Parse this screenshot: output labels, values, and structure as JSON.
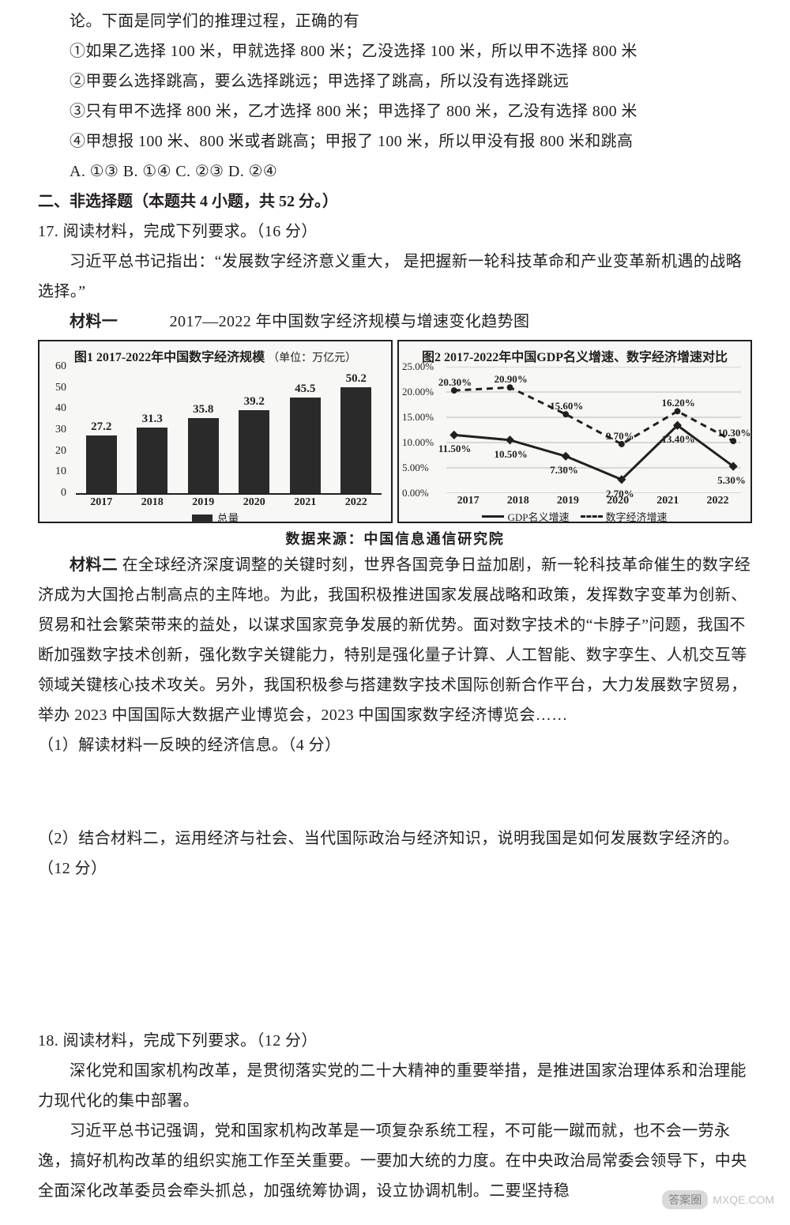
{
  "q_continued": {
    "stem_cont": "论。下面是同学们的推理过程，正确的有",
    "opt1": "①如果乙选择 100 米，甲就选择 800 米；乙没选择 100 米，所以甲不选择 800 米",
    "opt2": "②甲要么选择跳高，要么选择跳远；甲选择了跳高，所以没有选择跳远",
    "opt3": "③只有甲不选择 800 米，乙才选择 800 米；甲选择了 800 米，乙没有选择 800 米",
    "opt4": "④甲想报 100 米、800 米或者跳高；甲报了 100 米，所以甲没有报 800 米和跳高",
    "choices": "A. ①③ B. ①④ C. ②③ D. ②④"
  },
  "section2_heading": "二、非选择题（本题共 4 小题，共 52 分。）",
  "q17": {
    "heading": "17. 阅读材料，完成下列要求。（16 分）",
    "lead": "习近平总书记指出：“发展数字经济意义重大， 是把握新一轮科技革命和产业变革新机遇的战略选择。”",
    "mat1_label": "材料一",
    "mat1_title": "2017—2022 年中国数字经济规模与增速变化趋势图",
    "mat2_label": "材料二",
    "mat2_body": "在全球经济深度调整的关键时刻，世界各国竞争日益加剧，新一轮科技革命催生的数字经济成为大国抢占制高点的主阵地。为此，我国积极推进国家发展战略和政策，发挥数字变革为创新、贸易和社会繁荣带来的益处，以谋求国家竞争发展的新优势。面对数字技术的“卡脖子”问题，我国不断加强数字技术创新，强化数字关键能力，特别是强化量子计算、人工智能、数字孪生、人机交互等领域关键核心技术攻关。另外，我国积极参与搭建数字技术国际创新合作平台，大力发展数字贸易，举办 2023 中国国际大数据产业博览会，2023 中国国家数字经济博览会……",
    "sub1": "（1）解读材料一反映的经济信息。（4 分）",
    "sub2": "（2）结合材料二，运用经济与社会、当代国际政治与经济知识，说明我国是如何发展数字经济的。（12 分）"
  },
  "charts": {
    "source_line": "数据来源：中国信息通信研究院",
    "bar": {
      "title": "图1  2017-2022年中国数字经济规模",
      "unit": "（单位：万亿元）",
      "type": "bar",
      "categories": [
        "2017",
        "2018",
        "2019",
        "2020",
        "2021",
        "2022"
      ],
      "values": [
        27.2,
        31.3,
        35.8,
        39.2,
        45.5,
        50.2
      ],
      "ylim": [
        0,
        60
      ],
      "ytick_step": 10,
      "bar_color": "#2a2a2a",
      "background_color": "#f7f7f5",
      "border_color": "#231f20",
      "label_fontsize": 15,
      "legend_label": "总量"
    },
    "lines": {
      "title": "图2  2017-2022年中国GDP名义增速、数字经济增速对比",
      "type": "line",
      "categories": [
        "2017",
        "2018",
        "2019",
        "2020",
        "2021",
        "2022"
      ],
      "series": [
        {
          "name": "GDP名义增速",
          "style": "solid",
          "color": "#231f20",
          "values_pct": [
            11.5,
            10.5,
            7.3,
            2.7,
            13.4,
            5.3
          ],
          "labels": [
            "11.50%",
            "10.50%",
            "7.30%",
            "2.70%",
            "13.40%",
            "5.30%"
          ]
        },
        {
          "name": "数字经济增速",
          "style": "dashed",
          "color": "#231f20",
          "values_pct": [
            20.3,
            20.9,
            15.6,
            9.7,
            16.2,
            10.3
          ],
          "labels": [
            "20.30%",
            "20.90%",
            "15.60%",
            "9.70%",
            "16.20%",
            "10.30%"
          ]
        }
      ],
      "ylim": [
        0,
        25
      ],
      "yticks_pct": [
        0,
        5,
        10,
        15,
        20,
        25
      ],
      "ytick_labels": [
        "0.00%",
        "5.00%",
        "10.00%",
        "15.00%",
        "20.00%",
        "25.00%"
      ],
      "background_color": "#f7f7f5",
      "grid_color": "#bdb9b5"
    }
  },
  "q18": {
    "heading": "18. 阅读材料，完成下列要求。（12 分）",
    "p1": "深化党和国家机构改革，是贯彻落实党的二十大精神的重要举措，是推进国家治理体系和治理能力现代化的集中部署。",
    "p2": "习近平总书记强调，党和国家机构改革是一项复杂系统工程，不可能一蹴而就，也不会一劳永逸，搞好机构改革的组织实施工作至关重要。一要加大统的力度。在中央政治局常委会领导下，中央全面深化改革委员会牵头抓总，加强统筹协调，设立协调机制。二要坚持稳"
  },
  "watermark": {
    "badge": "答案圈",
    "url": "MXQE.COM"
  },
  "colors": {
    "text": "#231f20",
    "page_bg": "#ffffff",
    "chart_bg": "#f7f7f5",
    "grid": "#bdb9b5"
  }
}
